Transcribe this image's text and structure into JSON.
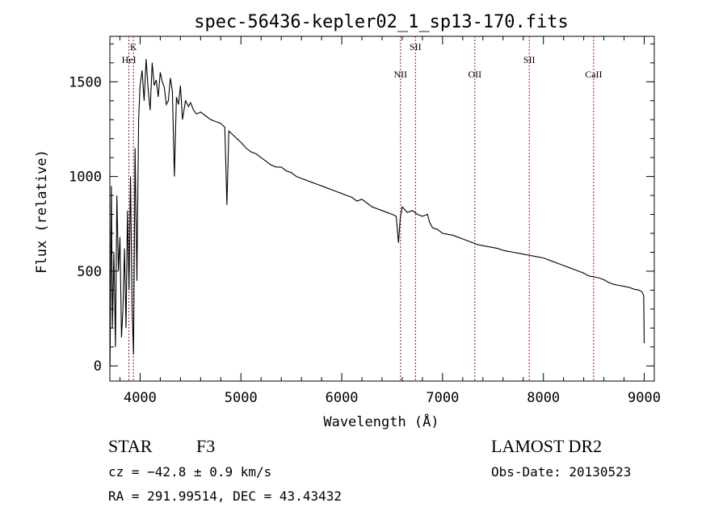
{
  "chart_data": {
    "type": "line",
    "title": "spec-56436-kepler02_1_sp13-170.fits",
    "xlabel": "Wavelength (Å)",
    "ylabel": "Flux (relative)",
    "xlim": [
      3700,
      9100
    ],
    "ylim": [
      -80,
      1740
    ],
    "x_ticks": [
      4000,
      5000,
      6000,
      7000,
      8000,
      9000
    ],
    "y_ticks": [
      0,
      500,
      1000,
      1500
    ],
    "grid": false,
    "line_color": "#000000",
    "marker_color": "#8b1a1a",
    "series": [
      {
        "x": [
          3702,
          3715,
          3725,
          3740,
          3755,
          3770,
          3785,
          3800,
          3815,
          3830,
          3845,
          3860,
          3875,
          3890,
          3905,
          3920,
          3935,
          3950,
          3968,
          3985,
          4000,
          4020,
          4040,
          4060,
          4080,
          4100,
          4120,
          4140,
          4160,
          4180,
          4200,
          4220,
          4240,
          4260,
          4280,
          4300,
          4320,
          4340,
          4360,
          4380,
          4400,
          4420,
          4450,
          4480,
          4500,
          4530,
          4560,
          4600,
          4650,
          4700,
          4750,
          4800,
          4840,
          4861,
          4880,
          4920,
          4960,
          5000,
          5050,
          5100,
          5150,
          5200,
          5250,
          5300,
          5350,
          5400,
          5450,
          5500,
          5550,
          5600,
          5650,
          5700,
          5750,
          5800,
          5850,
          5900,
          5950,
          6000,
          6050,
          6100,
          6150,
          6200,
          6250,
          6300,
          6350,
          6400,
          6450,
          6500,
          6540,
          6563,
          6580,
          6600,
          6650,
          6700,
          6750,
          6800,
          6850,
          6870,
          6900,
          6950,
          7000,
          7050,
          7100,
          7150,
          7200,
          7250,
          7300,
          7350,
          7400,
          7450,
          7500,
          7550,
          7600,
          7650,
          7700,
          7750,
          7800,
          7850,
          7900,
          7950,
          8000,
          8050,
          8100,
          8150,
          8200,
          8250,
          8300,
          8350,
          8400,
          8450,
          8500,
          8550,
          8600,
          8650,
          8700,
          8750,
          8800,
          8850,
          8900,
          8950,
          8980,
          8995,
          9000
        ],
        "y": [
          0,
          950,
          200,
          600,
          100,
          900,
          500,
          680,
          150,
          300,
          620,
          200,
          820,
          400,
          1000,
          300,
          60,
          1150,
          450,
          1300,
          1480,
          1560,
          1400,
          1620,
          1460,
          1350,
          1600,
          1480,
          1510,
          1420,
          1550,
          1500,
          1470,
          1380,
          1400,
          1520,
          1450,
          1000,
          1420,
          1380,
          1480,
          1300,
          1400,
          1370,
          1390,
          1350,
          1330,
          1340,
          1320,
          1300,
          1290,
          1280,
          1260,
          850,
          1240,
          1220,
          1200,
          1180,
          1150,
          1130,
          1120,
          1100,
          1080,
          1060,
          1050,
          1050,
          1030,
          1020,
          1000,
          990,
          980,
          970,
          960,
          950,
          940,
          930,
          920,
          910,
          900,
          890,
          870,
          880,
          860,
          840,
          830,
          820,
          810,
          800,
          790,
          650,
          780,
          840,
          810,
          820,
          800,
          790,
          800,
          760,
          730,
          720,
          700,
          695,
          690,
          680,
          670,
          660,
          650,
          640,
          635,
          630,
          625,
          620,
          610,
          605,
          600,
          595,
          590,
          585,
          580,
          575,
          570,
          560,
          550,
          540,
          530,
          520,
          510,
          500,
          490,
          475,
          470,
          465,
          455,
          440,
          430,
          425,
          420,
          415,
          405,
          400,
          390,
          370,
          120
        ]
      }
    ],
    "line_markers": [
      {
        "label": "K",
        "x": 3934,
        "row": 0
      },
      {
        "label": "HeI",
        "x": 3889,
        "row": 1
      },
      {
        "label": "NII",
        "x": 6583,
        "row": 2
      },
      {
        "label": "SII",
        "x": 6731,
        "row": 0
      },
      {
        "label": "OII",
        "x": 7320,
        "row": 2
      },
      {
        "label": "SII",
        "x": 7860,
        "row": 1
      },
      {
        "label": "CaII",
        "x": 8498,
        "row": 2
      }
    ]
  },
  "info": {
    "class": "STAR",
    "subclass": "F3",
    "survey": "LAMOST DR2",
    "cz": "cz = −42.8 ± 0.9 km/s",
    "obs_date": "Obs-Date: 20130523",
    "coords": "RA = 291.99514, DEC =  43.43432"
  }
}
